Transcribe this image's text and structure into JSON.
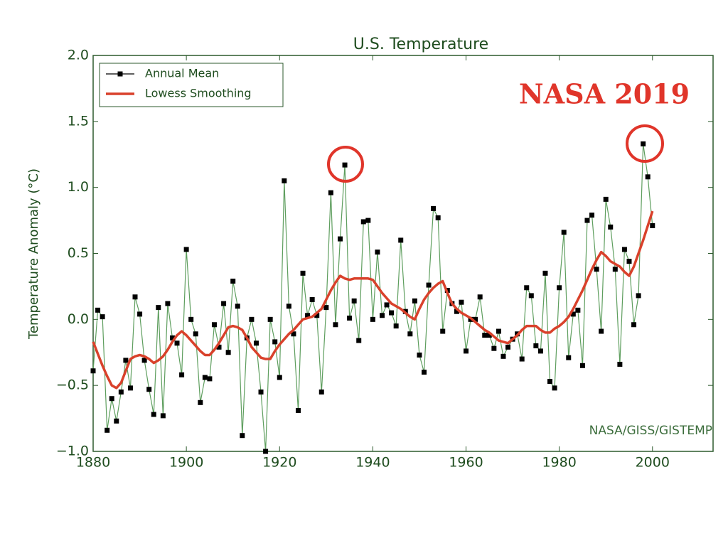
{
  "chart_data": {
    "type": "line",
    "title": "U.S. Temperature",
    "y_label": "Temperature Anomaly (°C)",
    "annotations": [
      "NASA 2019",
      "NASA/GISS/GISTEMP"
    ],
    "legend": "upper left",
    "x": [
      1880,
      1881,
      1882,
      1883,
      1884,
      1885,
      1886,
      1887,
      1888,
      1889,
      1890,
      1891,
      1892,
      1893,
      1894,
      1895,
      1896,
      1897,
      1898,
      1899,
      1900,
      1901,
      1902,
      1903,
      1904,
      1905,
      1906,
      1907,
      1908,
      1909,
      1910,
      1911,
      1912,
      1913,
      1914,
      1915,
      1916,
      1917,
      1918,
      1919,
      1920,
      1921,
      1922,
      1923,
      1924,
      1925,
      1926,
      1927,
      1928,
      1929,
      1930,
      1931,
      1932,
      1933,
      1934,
      1935,
      1936,
      1937,
      1938,
      1939,
      1940,
      1941,
      1942,
      1943,
      1944,
      1945,
      1946,
      1947,
      1948,
      1949,
      1950,
      1951,
      1952,
      1953,
      1954,
      1955,
      1956,
      1957,
      1958,
      1959,
      1960,
      1961,
      1962,
      1963,
      1964,
      1965,
      1966,
      1967,
      1968,
      1969,
      1970,
      1971,
      1972,
      1973,
      1974,
      1975,
      1976,
      1977,
      1978,
      1979,
      1980,
      1981,
      1982,
      1983,
      1984,
      1985,
      1986,
      1987,
      1988,
      1989,
      1990,
      1991,
      1992,
      1993,
      1994,
      1995,
      1996,
      1997,
      1998,
      1999,
      2000
    ],
    "series": [
      {
        "name": "Annual Mean",
        "color": "#5e9e5e",
        "marker_color": "#000000",
        "values": [
          -0.39,
          0.07,
          0.02,
          -0.84,
          -0.6,
          -0.77,
          -0.55,
          -0.31,
          -0.52,
          0.17,
          0.04,
          -0.31,
          -0.53,
          -0.72,
          0.09,
          -0.73,
          0.12,
          -0.14,
          -0.18,
          -0.42,
          0.53,
          0.0,
          -0.11,
          -0.63,
          -0.44,
          -0.45,
          -0.04,
          -0.21,
          0.12,
          -0.25,
          0.29,
          0.1,
          -0.88,
          -0.14,
          0.0,
          -0.18,
          -0.55,
          -1.0,
          0.0,
          -0.17,
          -0.44,
          1.05,
          0.1,
          -0.11,
          -0.69,
          0.35,
          0.03,
          0.15,
          0.03,
          -0.55,
          0.09,
          0.96,
          -0.04,
          0.61,
          1.17,
          0.01,
          0.14,
          -0.16,
          0.74,
          0.75,
          0.0,
          0.51,
          0.03,
          0.11,
          0.05,
          -0.05,
          0.6,
          0.06,
          -0.11,
          0.14,
          -0.27,
          -0.4,
          0.26,
          0.84,
          0.77,
          -0.09,
          0.22,
          0.12,
          0.06,
          0.13,
          -0.24,
          0.0,
          0.0,
          0.17,
          -0.12,
          -0.12,
          -0.22,
          -0.09,
          -0.28,
          -0.21,
          -0.15,
          -0.11,
          -0.3,
          0.24,
          0.18,
          -0.2,
          -0.24,
          0.35,
          -0.47,
          -0.52,
          0.24,
          0.66,
          -0.29,
          0.04,
          0.07,
          -0.35,
          0.75,
          0.79,
          0.38,
          -0.09,
          0.91,
          0.7,
          0.38,
          -0.34,
          0.53,
          0.44,
          -0.04,
          0.18,
          1.33,
          1.08,
          0.71
        ]
      },
      {
        "name": "Lowess Smoothing",
        "color": "#d9412b",
        "values": [
          -0.17,
          -0.26,
          -0.35,
          -0.43,
          -0.5,
          -0.52,
          -0.48,
          -0.39,
          -0.3,
          -0.28,
          -0.27,
          -0.28,
          -0.3,
          -0.33,
          -0.31,
          -0.28,
          -0.23,
          -0.17,
          -0.12,
          -0.09,
          -0.12,
          -0.16,
          -0.2,
          -0.24,
          -0.27,
          -0.27,
          -0.23,
          -0.18,
          -0.12,
          -0.06,
          -0.05,
          -0.06,
          -0.08,
          -0.14,
          -0.21,
          -0.25,
          -0.29,
          -0.3,
          -0.3,
          -0.24,
          -0.19,
          -0.15,
          -0.11,
          -0.08,
          -0.04,
          0.0,
          0.01,
          0.02,
          0.05,
          0.08,
          0.15,
          0.22,
          0.28,
          0.33,
          0.31,
          0.3,
          0.31,
          0.31,
          0.31,
          0.31,
          0.3,
          0.25,
          0.2,
          0.16,
          0.12,
          0.1,
          0.08,
          0.05,
          0.02,
          0.0,
          0.08,
          0.15,
          0.2,
          0.24,
          0.27,
          0.29,
          0.2,
          0.12,
          0.08,
          0.05,
          0.03,
          0.01,
          -0.02,
          -0.05,
          -0.08,
          -0.1,
          -0.13,
          -0.16,
          -0.17,
          -0.18,
          -0.15,
          -0.12,
          -0.08,
          -0.05,
          -0.05,
          -0.05,
          -0.08,
          -0.1,
          -0.1,
          -0.07,
          -0.05,
          -0.02,
          0.02,
          0.08,
          0.15,
          0.22,
          0.3,
          0.38,
          0.45,
          0.51,
          0.48,
          0.44,
          0.42,
          0.4,
          0.36,
          0.33,
          0.4,
          0.5,
          0.6,
          0.71,
          0.82
        ]
      }
    ],
    "xlim": [
      1880,
      2013
    ],
    "xticks": [
      1880,
      1900,
      1920,
      1940,
      1960,
      1980,
      2000
    ],
    "ylim": [
      -1.0,
      2.0
    ],
    "yticks": [
      {
        "value": -1.0,
        "label": "−1.0"
      },
      {
        "value": -0.5,
        "label": "−0.5"
      },
      {
        "value": 0.0,
        "label": "0.0"
      },
      0.5,
      {
        "value": 1.0,
        "label": "1.0"
      },
      1.5,
      {
        "value": 2.0,
        "label": "2.0"
      }
    ]
  }
}
